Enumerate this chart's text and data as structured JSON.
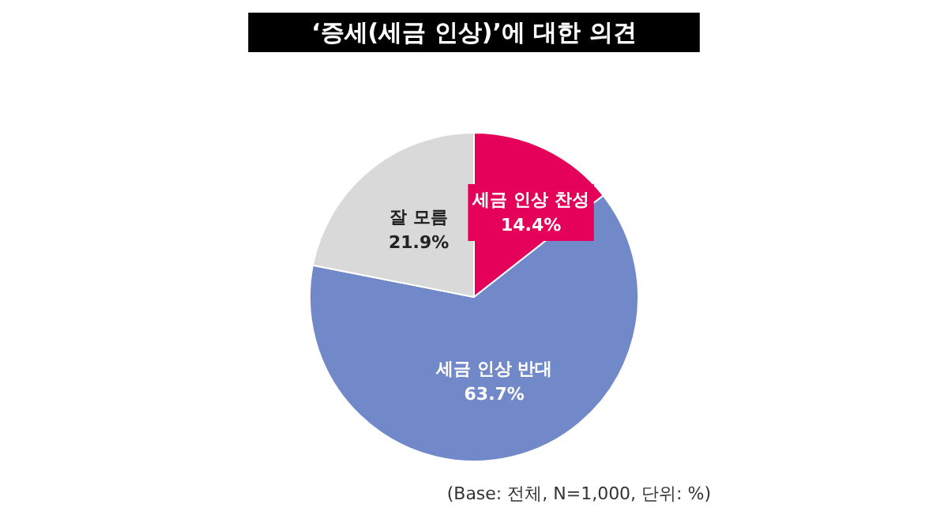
{
  "chart_data": {
    "type": "pie",
    "title": "‘증세(세금 인상)’에 대한 의견",
    "categories": [
      "세금 인상 찬성",
      "세금 인상 반대",
      "잘 모름"
    ],
    "values": [
      14.4,
      63.7,
      21.9
    ],
    "value_labels": [
      "14.4%",
      "63.7%",
      "21.9%"
    ],
    "colors": [
      "#e5005a",
      "#7289c9",
      "#d9d9d9"
    ],
    "annotations": [
      "(Base: 전체, N=1,000, 단위: %)"
    ],
    "legend": false
  }
}
